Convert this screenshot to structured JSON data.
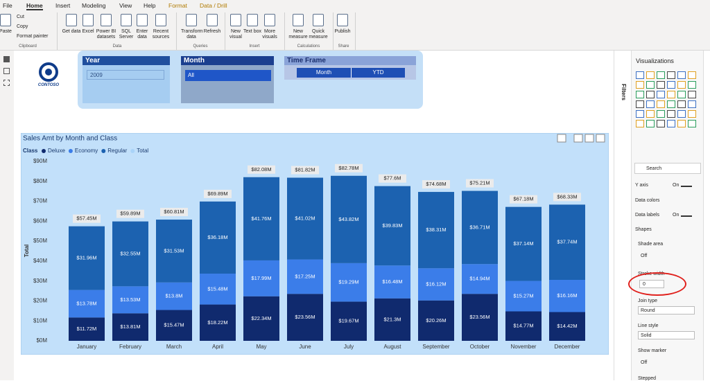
{
  "menu": {
    "tabs": [
      "File",
      "Home",
      "Insert",
      "Modeling",
      "View",
      "Help",
      "Format",
      "Data / Drill"
    ]
  },
  "ribbon": {
    "groups": [
      {
        "label": "Clipboard",
        "buttons": [
          "Paste",
          "Cut",
          "Copy",
          "Format painter"
        ]
      },
      {
        "label": "Data",
        "buttons": [
          "Get data",
          "Excel",
          "Power BI datasets",
          "SQL Server",
          "Enter data",
          "Recent sources"
        ]
      },
      {
        "label": "Queries",
        "buttons": [
          "Transform data",
          "Refresh"
        ]
      },
      {
        "label": "Insert",
        "buttons": [
          "New visual",
          "Text box",
          "More visuals"
        ]
      },
      {
        "label": "Calculations",
        "buttons": [
          "New measure",
          "Quick measure"
        ]
      },
      {
        "label": "Share",
        "buttons": [
          "Publish"
        ]
      }
    ]
  },
  "logo": "CONTOSO",
  "slicers": {
    "year": {
      "title": "Year",
      "value": "2009"
    },
    "month": {
      "title": "Month",
      "value": "All"
    },
    "time_frame": {
      "title": "Time Frame",
      "buttons": [
        "Month",
        "YTD"
      ]
    }
  },
  "filters": "Filters",
  "visualizations": {
    "title": "Visualizations",
    "search": "Search",
    "sections": [
      {
        "label": "Y axis",
        "state": "On"
      },
      {
        "label": "Data colors"
      },
      {
        "label": "Data labels",
        "state": "On"
      },
      {
        "label": "Shapes"
      }
    ],
    "shade_area": {
      "label": "Shade area",
      "state": "Off"
    },
    "stroke_width": {
      "label": "Stroke width",
      "value": "0"
    },
    "join_type": {
      "label": "Join type",
      "value": "Round"
    },
    "line_style": {
      "label": "Line style",
      "value": "Solid"
    },
    "show_marker": {
      "label": "Show marker",
      "state": "Off"
    },
    "stepped": {
      "label": "Stepped"
    }
  },
  "chart_data": {
    "type": "stacked_bar",
    "title": "Sales Amt by Month and Class",
    "legend_title": "Class",
    "y_label": "Total",
    "categories": [
      "January",
      "February",
      "March",
      "April",
      "May",
      "June",
      "July",
      "August",
      "September",
      "October",
      "November",
      "December"
    ],
    "ylim": [
      0,
      90000000
    ],
    "yticks": [
      {
        "value": 0,
        "label": "$0M"
      },
      {
        "value": 10000000,
        "label": "$10M"
      },
      {
        "value": 20000000,
        "label": "$20M"
      },
      {
        "value": 30000000,
        "label": "$30M"
      },
      {
        "value": 40000000,
        "label": "$40M"
      },
      {
        "value": 50000000,
        "label": "$50M"
      },
      {
        "value": 60000000,
        "label": "$60M"
      },
      {
        "value": 70000000,
        "label": "$70M"
      },
      {
        "value": 80000000,
        "label": "$80M"
      },
      {
        "value": 90000000,
        "label": "$90M"
      }
    ],
    "grid": false,
    "series": [
      {
        "name": "Deluxe",
        "color": "#102a6e",
        "values": [
          11720000,
          13810000,
          15470000,
          18220000,
          22340000,
          23560000,
          19670000,
          21300000,
          20260000,
          23560000,
          14770000,
          14420000
        ],
        "value_labels": [
          "$11.72M",
          "$13.81M",
          "$15.47M",
          "$18.22M",
          "$22.34M",
          "$23.56M",
          "$19.67M",
          "$21.3M",
          "$20.26M",
          "$23.56M",
          "$14.77M",
          "$14.42M"
        ]
      },
      {
        "name": "Economy",
        "color": "#3b7de9",
        "values": [
          13780000,
          13530000,
          13800000,
          15480000,
          17990000,
          17250000,
          19290000,
          16480000,
          16120000,
          14940000,
          15270000,
          16160000
        ],
        "value_labels": [
          "$13.78M",
          "$13.53M",
          "$13.8M",
          "$15.48M",
          "$17.99M",
          "$17.25M",
          "$19.29M",
          "$16.48M",
          "$16.12M",
          "$14.94M",
          "$15.27M",
          "$16.16M"
        ]
      },
      {
        "name": "Regular",
        "color": "#1c62b0",
        "values": [
          31960000,
          32550000,
          31530000,
          36180000,
          41760000,
          41020000,
          43820000,
          39830000,
          38310000,
          36710000,
          37140000,
          37740000
        ],
        "value_labels": [
          "$31.96M",
          "$32.55M",
          "$31.53M",
          "$36.18M",
          "$41.76M",
          "$41.02M",
          "$43.82M",
          "$39.83M",
          "$38.31M",
          "$36.71M",
          "$37.14M",
          "$37.74M"
        ]
      },
      {
        "name": "Total",
        "color": "#a9d3f8",
        "values": [
          57450000,
          59890000,
          60810000,
          69890000,
          82080000,
          81820000,
          82780000,
          77600000,
          74680000,
          75210000,
          67180000,
          68330000
        ],
        "value_labels": [
          "$57.45M",
          "$59.89M",
          "$60.81M",
          "$69.89M",
          "$82.08M",
          "$81.82M",
          "$82.78M",
          "$77.6M",
          "$74.68M",
          "$75.21M",
          "$67.18M",
          "$68.33M"
        ]
      }
    ]
  }
}
